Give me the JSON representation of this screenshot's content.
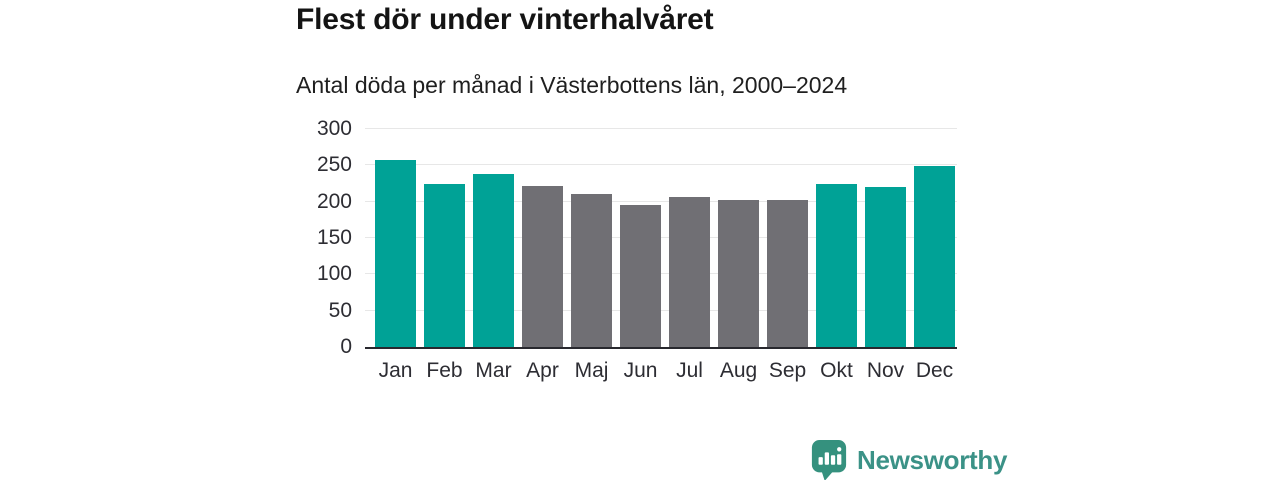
{
  "header": {
    "title": "Flest dör under vinterhalvåret",
    "subtitle": "Antal döda per månad i Västerbottens län, 2000–2024"
  },
  "chart_data": {
    "type": "bar",
    "title": "Flest dör under vinterhalvåret",
    "subtitle": "Antal döda per månad i Västerbottens län, 2000–2024",
    "categories": [
      "Jan",
      "Feb",
      "Mar",
      "Apr",
      "Maj",
      "Jun",
      "Jul",
      "Aug",
      "Sep",
      "Okt",
      "Nov",
      "Dec"
    ],
    "values": [
      258,
      225,
      238,
      221,
      210,
      196,
      207,
      202,
      203,
      225,
      220,
      249
    ],
    "bar_colors": [
      "#00a296",
      "#00a296",
      "#00a296",
      "#706f74",
      "#706f74",
      "#706f74",
      "#706f74",
      "#706f74",
      "#706f74",
      "#00a296",
      "#00a296",
      "#00a296"
    ],
    "xlabel": "",
    "ylabel": "",
    "ylim": [
      0,
      300
    ],
    "yticks": [
      0,
      50,
      100,
      150,
      200,
      250,
      300
    ],
    "grid": true,
    "legend": false
  },
  "colors": {
    "highlight_teal": "#00a296",
    "muted_gray": "#706f74",
    "gridline": "#e7e7e7",
    "axis_line": "#28282e",
    "text_dark": "#141414",
    "brand_teal": "#3b9287"
  },
  "footer": {
    "brand": "Newsworthy",
    "logo_icon": "bar-chart-speech-bubble-icon"
  }
}
